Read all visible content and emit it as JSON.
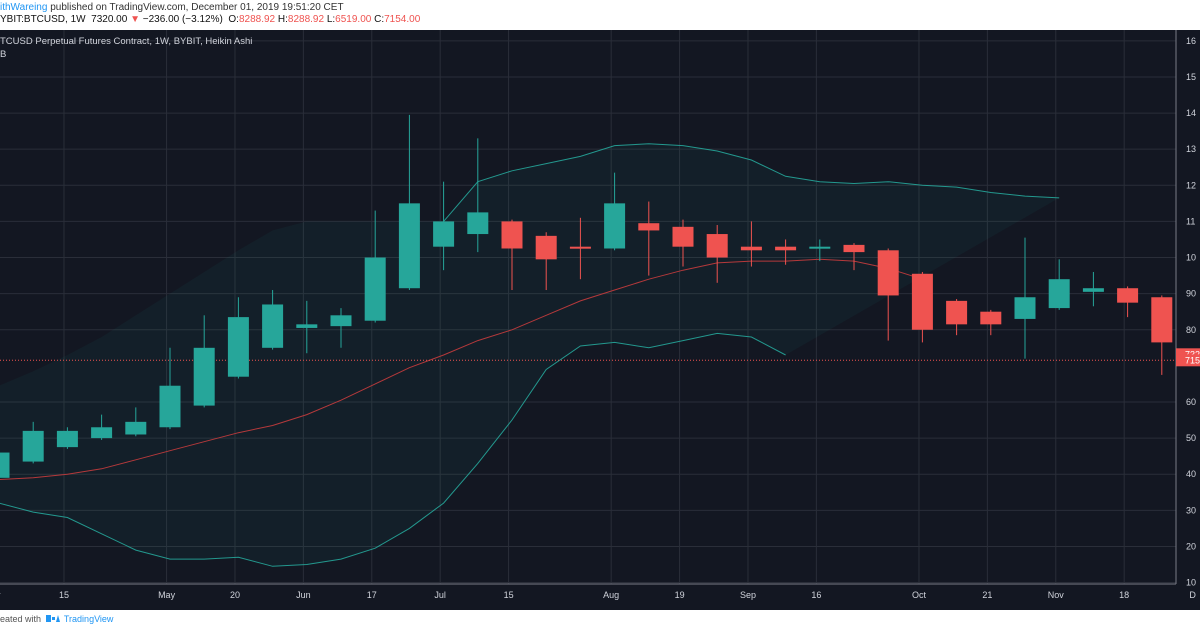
{
  "header": {
    "author": "ithWareing",
    "published": "published on TradingView.com, December 01, 2019 19:51:20 CET",
    "symbol": "YBIT:BTCUSD, 1W",
    "close": "7320.00",
    "change_arrow": "▼",
    "change": "−236.00 (−3.12%)",
    "o_label": "O:",
    "o_val": "8288.92",
    "h_label": "H:",
    "h_val": "8288.92",
    "l_label": "L:",
    "l_val": "6519.00",
    "c_label": "C:",
    "c_val": "7154.00"
  },
  "legend": {
    "title": "TCUSD Perpetual Futures Contract, 1W, BYBIT, Heikin Ashi",
    "indicator": "B"
  },
  "footer": {
    "created": "eated with",
    "brand": "TradingView"
  },
  "colors": {
    "background": "#131722",
    "up": "#26a69a",
    "down": "#ef5350",
    "band": "#26a69a",
    "basis": "#b5393b",
    "axis_text": "#d1d4dc"
  },
  "chart_data": {
    "type": "candlestick",
    "style": "Heikin Ashi",
    "indicator": "Bollinger Bands",
    "x_labels": [
      "r",
      "15",
      "May",
      "20",
      "Jun",
      "17",
      "Jul",
      "15",
      "Aug",
      "19",
      "Sep",
      "16",
      "Oct",
      "21",
      "Nov",
      "18",
      "D"
    ],
    "y_labels": [
      "16",
      "15",
      "14",
      "13",
      "12",
      "11",
      "10",
      "90",
      "80",
      "60",
      "50",
      "40",
      "30",
      "20",
      "10"
    ],
    "ylim": [
      960,
      16300
    ],
    "price_tags": [
      "732",
      "715"
    ],
    "current_price": 7154,
    "candles": [
      {
        "o": 3900,
        "h": 4700,
        "l": 3850,
        "c": 4600
      },
      {
        "o": 4350,
        "h": 5450,
        "l": 4300,
        "c": 5200
      },
      {
        "o": 4750,
        "h": 5300,
        "l": 4700,
        "c": 5200
      },
      {
        "o": 5000,
        "h": 5650,
        "l": 4950,
        "c": 5300
      },
      {
        "o": 5100,
        "h": 5850,
        "l": 5050,
        "c": 5450
      },
      {
        "o": 5300,
        "h": 7500,
        "l": 5250,
        "c": 6450
      },
      {
        "o": 5900,
        "h": 8400,
        "l": 5850,
        "c": 7500
      },
      {
        "o": 6700,
        "h": 8900,
        "l": 6650,
        "c": 8350
      },
      {
        "o": 7500,
        "h": 9100,
        "l": 7450,
        "c": 8700
      },
      {
        "o": 8050,
        "h": 8800,
        "l": 7350,
        "c": 8150
      },
      {
        "o": 8100,
        "h": 8600,
        "l": 7500,
        "c": 8400
      },
      {
        "o": 8250,
        "h": 11300,
        "l": 8200,
        "c": 10000
      },
      {
        "o": 9150,
        "h": 13950,
        "l": 9100,
        "c": 11500
      },
      {
        "o": 10300,
        "h": 12100,
        "l": 9650,
        "c": 11000
      },
      {
        "o": 10650,
        "h": 13300,
        "l": 10150,
        "c": 11250
      },
      {
        "o": 11000,
        "h": 11050,
        "l": 9100,
        "c": 10250
      },
      {
        "o": 10600,
        "h": 10700,
        "l": 9100,
        "c": 9950
      },
      {
        "o": 10300,
        "h": 11100,
        "l": 9400,
        "c": 10250
      },
      {
        "o": 10250,
        "h": 12350,
        "l": 10200,
        "c": 11500
      },
      {
        "o": 10950,
        "h": 11550,
        "l": 9500,
        "c": 10750
      },
      {
        "o": 10850,
        "h": 11050,
        "l": 9750,
        "c": 10300
      },
      {
        "o": 10650,
        "h": 10900,
        "l": 9300,
        "c": 10000
      },
      {
        "o": 10300,
        "h": 11000,
        "l": 9750,
        "c": 10200
      },
      {
        "o": 10300,
        "h": 10500,
        "l": 9800,
        "c": 10200
      },
      {
        "o": 10250,
        "h": 10500,
        "l": 9900,
        "c": 10300
      },
      {
        "o": 10350,
        "h": 10400,
        "l": 9650,
        "c": 10150
      },
      {
        "o": 10200,
        "h": 10250,
        "l": 7700,
        "c": 8950
      },
      {
        "o": 9550,
        "h": 9600,
        "l": 7650,
        "c": 8000
      },
      {
        "o": 8800,
        "h": 8850,
        "l": 7850,
        "c": 8150
      },
      {
        "o": 8500,
        "h": 8550,
        "l": 7850,
        "c": 8150
      },
      {
        "o": 8300,
        "h": 10550,
        "l": 7200,
        "c": 8900
      },
      {
        "o": 8600,
        "h": 9950,
        "l": 8550,
        "c": 9400
      },
      {
        "o": 9050,
        "h": 9600,
        "l": 8650,
        "c": 9150
      },
      {
        "o": 9150,
        "h": 9200,
        "l": 8350,
        "c": 8750
      },
      {
        "o": 8900,
        "h": 8950,
        "l": 6750,
        "c": 7650
      },
      {
        "o": 8289,
        "h": 8289,
        "l": 6519,
        "c": 7154
      }
    ],
    "upper_band": [
      null,
      null,
      null,
      null,
      null,
      null,
      null,
      null,
      null,
      null,
      null,
      null,
      null,
      11000,
      12100,
      12400,
      12600,
      12800,
      13100,
      13150,
      13100,
      12950,
      12700,
      12250,
      12100,
      12050,
      12100,
      12000,
      11950,
      11800,
      11700,
      11650
    ],
    "basis": [
      3850,
      3900,
      4000,
      4150,
      4400,
      4650,
      4900,
      5150,
      5350,
      5650,
      6050,
      6500,
      6950,
      7300,
      7700,
      8000,
      8400,
      8800,
      9100,
      9400,
      9650,
      9850,
      9900,
      9900,
      9950,
      9900,
      9700,
      9400
    ],
    "lower_band": [
      3200,
      2950,
      2800,
      2350,
      1900,
      1650,
      1650,
      1700,
      1450,
      1500,
      1650,
      1950,
      2500,
      3200,
      4300,
      5500,
      6900,
      7550,
      7650,
      7500,
      7700,
      7900,
      7800,
      7300
    ]
  }
}
